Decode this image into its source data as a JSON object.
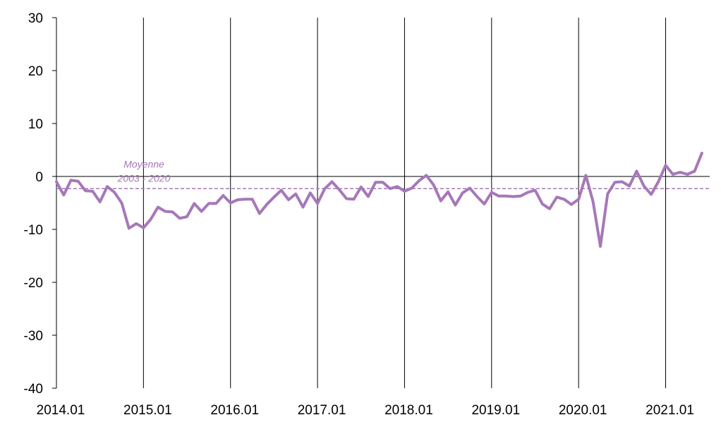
{
  "chart_data": {
    "type": "line",
    "x_start": "2014.01",
    "x_step": "monthly",
    "xticks": [
      "2014.01",
      "2015.01",
      "2016.01",
      "2017.01",
      "2018.01",
      "2019.01",
      "2020.01",
      "2021.01"
    ],
    "yticks": [
      "30",
      "20",
      "10",
      "0",
      "-10",
      "-20",
      "-30",
      "-40"
    ],
    "ylim": [
      -40,
      30
    ],
    "grid": "vertical lines at each January",
    "series": [
      {
        "color": "#a678b8",
        "values": [
          -1,
          -3.5,
          -0.7,
          -0.9,
          -2.7,
          -2.8,
          -4.8,
          -1.9,
          -3.0,
          -5.0,
          -9.8,
          -8.9,
          -9.7,
          -8.1,
          -5.8,
          -6.6,
          -6.7,
          -7.9,
          -7.6,
          -5.1,
          -6.6,
          -5.1,
          -5.1,
          -3.6,
          -5.0,
          -4.4,
          -4.3,
          -4.3,
          -7.0,
          -5.3,
          -3.9,
          -2.6,
          -4.4,
          -3.3,
          -5.8,
          -3.1,
          -5.1,
          -2.3,
          -1.0,
          -2.5,
          -4.2,
          -4.3,
          -2.0,
          -3.8,
          -1.1,
          -1.1,
          -2.3,
          -1.9,
          -2.8,
          -2.2,
          -0.8,
          0.2,
          -1.6,
          -4.6,
          -2.9,
          -5.4,
          -3.1,
          -2.2,
          -3.8,
          -5.2,
          -3.0,
          -3.7,
          -3.7,
          -3.8,
          -3.7,
          -3.0,
          -2.6,
          -5.2,
          -6.1,
          -3.9,
          -4.3,
          -5.3,
          -4.3,
          0.2,
          -4.8,
          -13.2,
          -3.3,
          -1.1,
          -1.0,
          -1.8,
          1.0,
          -1.8,
          -3.4,
          -1.0,
          2.1,
          0.4,
          0.8,
          0.4,
          1.0,
          4.4
        ]
      }
    ],
    "reference_line": {
      "value": -2.3,
      "label_line1": "Moyenne",
      "label_line2": "2003 - 2020",
      "color": "#a678b8"
    }
  }
}
